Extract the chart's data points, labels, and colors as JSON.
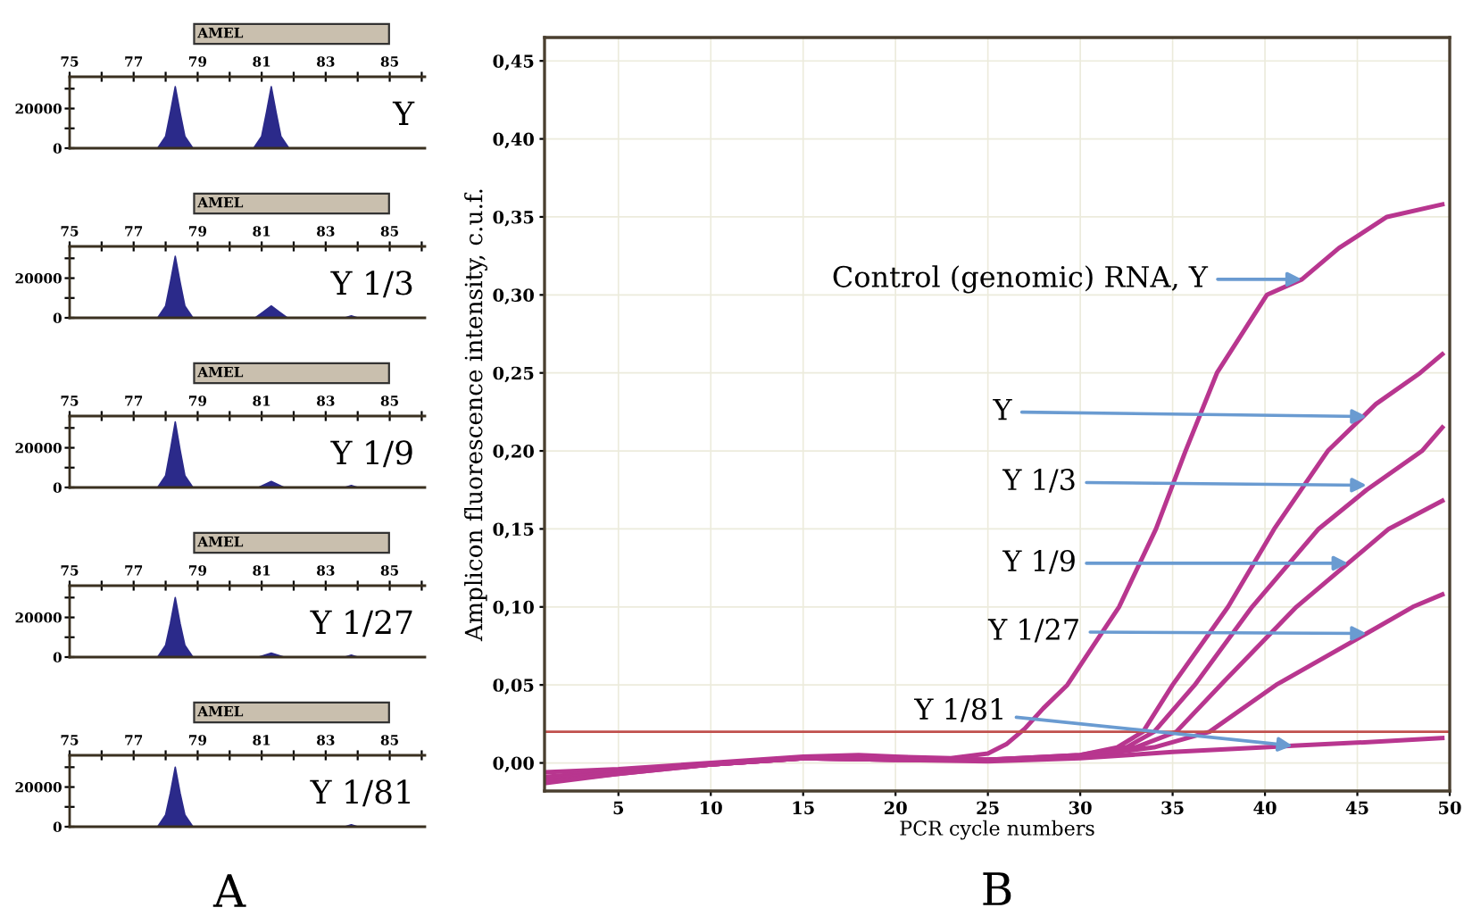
{
  "chart_data": [
    {
      "type": "area",
      "x": [
        75,
        77.75,
        78.0,
        78.15,
        78.3,
        78.45,
        78.6,
        78.85,
        80.75,
        81.0,
        81.15,
        81.3,
        81.45,
        81.6,
        81.85,
        86.1
      ],
      "values": [
        0,
        0,
        6000,
        18000,
        31000,
        18000,
        6000,
        0,
        0,
        6000,
        18000,
        31000,
        18000,
        6000,
        0,
        0
      ],
      "color": "#2b2a8a",
      "xlim": [
        75,
        86.1
      ],
      "xticks": [
        75,
        {
          "value": 76,
          "label": null
        },
        77,
        {
          "value": 78,
          "label": null
        },
        79,
        {
          "value": 80,
          "label": null
        },
        81,
        {
          "value": 82,
          "label": null
        },
        83,
        {
          "value": 84,
          "label": null
        },
        85,
        {
          "value": 86,
          "label": null
        }
      ],
      "ylim": [
        0,
        36000
      ],
      "yticks": [
        0,
        {
          "value": 10000,
          "label": null
        },
        20000,
        {
          "value": 30000,
          "label": null
        }
      ],
      "annotations": [
        "AMEL",
        "Y"
      ]
    },
    {
      "type": "area",
      "x": [
        75,
        77.75,
        78.0,
        78.15,
        78.3,
        78.45,
        78.6,
        78.85,
        80.8,
        81.05,
        81.3,
        81.55,
        81.8,
        83.6,
        83.8,
        84.0,
        86.1
      ],
      "values": [
        0,
        0,
        6000,
        18000,
        31000,
        18000,
        6000,
        0,
        0,
        3000,
        6000,
        3000,
        0,
        0,
        1000,
        0,
        0
      ],
      "color": "#2b2a8a",
      "xlim": [
        75,
        86.1
      ],
      "xticks": [
        75,
        {
          "value": 76,
          "label": null
        },
        77,
        {
          "value": 78,
          "label": null
        },
        79,
        {
          "value": 80,
          "label": null
        },
        81,
        {
          "value": 82,
          "label": null
        },
        83,
        {
          "value": 84,
          "label": null
        },
        85,
        {
          "value": 86,
          "label": null
        }
      ],
      "ylim": [
        0,
        36000
      ],
      "yticks": [
        0,
        {
          "value": 10000,
          "label": null
        },
        20000,
        {
          "value": 30000,
          "label": null
        }
      ],
      "annotations": [
        "AMEL",
        "Y 1/3"
      ]
    },
    {
      "type": "area",
      "x": [
        75,
        77.75,
        78.0,
        78.15,
        78.3,
        78.45,
        78.6,
        78.85,
        80.9,
        81.3,
        81.7,
        83.6,
        83.8,
        84.0,
        86.1
      ],
      "values": [
        0,
        0,
        6000,
        19000,
        33000,
        19000,
        6000,
        0,
        0,
        3000,
        0,
        0,
        1000,
        0,
        0
      ],
      "color": "#2b2a8a",
      "xlim": [
        75,
        86.1
      ],
      "xticks": [
        75,
        {
          "value": 76,
          "label": null
        },
        77,
        {
          "value": 78,
          "label": null
        },
        79,
        {
          "value": 80,
          "label": null
        },
        81,
        {
          "value": 82,
          "label": null
        },
        83,
        {
          "value": 84,
          "label": null
        },
        85,
        {
          "value": 86,
          "label": null
        }
      ],
      "ylim": [
        0,
        36000
      ],
      "yticks": [
        0,
        {
          "value": 10000,
          "label": null
        },
        20000,
        {
          "value": 30000,
          "label": null
        }
      ],
      "annotations": [
        "AMEL",
        "Y 1/9"
      ]
    },
    {
      "type": "area",
      "x": [
        75,
        77.75,
        78.0,
        78.15,
        78.3,
        78.45,
        78.6,
        78.85,
        80.9,
        81.3,
        81.7,
        83.6,
        83.8,
        84.0,
        86.1
      ],
      "values": [
        0,
        0,
        6000,
        17000,
        30000,
        17000,
        6000,
        0,
        0,
        2000,
        0,
        0,
        1000,
        0,
        0
      ],
      "color": "#2b2a8a",
      "xlim": [
        75,
        86.1
      ],
      "xticks": [
        75,
        {
          "value": 76,
          "label": null
        },
        77,
        {
          "value": 78,
          "label": null
        },
        79,
        {
          "value": 80,
          "label": null
        },
        81,
        {
          "value": 82,
          "label": null
        },
        83,
        {
          "value": 84,
          "label": null
        },
        85,
        {
          "value": 86,
          "label": null
        }
      ],
      "ylim": [
        0,
        36000
      ],
      "yticks": [
        0,
        {
          "value": 10000,
          "label": null
        },
        20000,
        {
          "value": 30000,
          "label": null
        }
      ],
      "annotations": [
        "AMEL",
        "Y 1/27"
      ]
    },
    {
      "type": "area",
      "x": [
        75,
        77.75,
        78.0,
        78.15,
        78.3,
        78.45,
        78.6,
        78.85,
        83.6,
        83.8,
        84.0,
        86.1
      ],
      "values": [
        0,
        0,
        6000,
        17000,
        30000,
        17000,
        6000,
        0,
        0,
        1000,
        0,
        0
      ],
      "color": "#2b2a8a",
      "xlim": [
        75,
        86.1
      ],
      "xticks": [
        75,
        {
          "value": 76,
          "label": null
        },
        77,
        {
          "value": 78,
          "label": null
        },
        79,
        {
          "value": 80,
          "label": null
        },
        81,
        {
          "value": 82,
          "label": null
        },
        83,
        {
          "value": 84,
          "label": null
        },
        85,
        {
          "value": 86,
          "label": null
        }
      ],
      "ylim": [
        0,
        36000
      ],
      "yticks": [
        0,
        {
          "value": 10000,
          "label": null
        },
        20000,
        {
          "value": 30000,
          "label": null
        }
      ],
      "annotations": [
        "AMEL",
        "Y 1/81",
        "A"
      ]
    },
    {
      "type": "line",
      "xlabel": "PCR cycle numbers",
      "ylabel": "Amplicon fluorescence intensity, c.u.f.",
      "xlim": [
        1,
        50
      ],
      "xticks": [
        5,
        10,
        15,
        20,
        25,
        30,
        35,
        40,
        45,
        50
      ],
      "ylim": [
        -0.018,
        0.465
      ],
      "yticks": [
        {
          "value": 0,
          "label": "0,00"
        },
        {
          "value": 0.05,
          "label": "0,05"
        },
        {
          "value": 0.1,
          "label": "0,10"
        },
        {
          "value": 0.15,
          "label": "0,15"
        },
        {
          "value": 0.2,
          "label": "0,20"
        },
        {
          "value": 0.25,
          "label": "0,25"
        },
        {
          "value": 0.3,
          "label": "0,30"
        },
        {
          "value": 0.35,
          "label": "0,35"
        },
        {
          "value": 0.4,
          "label": "0,40"
        },
        {
          "value": 0.45,
          "label": "0,45"
        }
      ],
      "grid": true,
      "ref_lines": [
        {
          "axis": "y",
          "value": 0.02,
          "color": "#c0504d"
        }
      ],
      "series": [
        {
          "color": "#b8368f",
          "x": [
            1,
            5,
            10,
            15,
            18,
            20,
            23,
            25,
            26,
            27,
            28,
            29.3,
            30.7,
            32.1,
            34.1,
            35.7,
            37.4,
            40.1,
            42,
            44,
            46.6,
            49.6
          ],
          "values": [
            -0.006,
            -0.004,
            0.0,
            0.004,
            0.005,
            0.004,
            0.003,
            0.006,
            0.012,
            0.022,
            0.035,
            0.05,
            0.075,
            0.1,
            0.15,
            0.2,
            0.25,
            0.3,
            0.31,
            0.33,
            0.35,
            0.358
          ]
        },
        {
          "color": "#b8368f",
          "x": [
            1,
            5,
            10,
            15,
            20,
            25,
            30,
            32,
            33.4,
            35,
            38,
            40.5,
            43.4,
            46,
            48.4,
            49.6
          ],
          "values": [
            -0.009,
            -0.005,
            -0.001,
            0.003,
            0.003,
            0.002,
            0.005,
            0.01,
            0.02,
            0.05,
            0.1,
            0.15,
            0.2,
            0.23,
            0.25,
            0.262
          ]
        },
        {
          "color": "#b8368f",
          "x": [
            1,
            5,
            10,
            15,
            20,
            25,
            30,
            32.5,
            34,
            36.2,
            39.3,
            42.9,
            45.5,
            48.5,
            49.6
          ],
          "values": [
            -0.01,
            -0.006,
            -0.001,
            0.003,
            0.002,
            0.002,
            0.005,
            0.01,
            0.02,
            0.05,
            0.1,
            0.15,
            0.175,
            0.2,
            0.215
          ]
        },
        {
          "color": "#b8368f",
          "x": [
            1,
            5,
            10,
            15,
            20,
            25,
            30,
            33,
            35.2,
            37.6,
            41.7,
            44.5,
            46.7,
            49.6
          ],
          "values": [
            -0.011,
            -0.006,
            -0.001,
            0.003,
            0.002,
            0.002,
            0.004,
            0.01,
            0.02,
            0.05,
            0.1,
            0.128,
            0.15,
            0.168
          ]
        },
        {
          "color": "#b8368f",
          "x": [
            1,
            5,
            10,
            15,
            20,
            25,
            30,
            34,
            37,
            40.6,
            45.5,
            48,
            49.6
          ],
          "values": [
            -0.012,
            -0.007,
            -0.001,
            0.003,
            0.002,
            0.002,
            0.004,
            0.01,
            0.02,
            0.05,
            0.083,
            0.1,
            0.108
          ]
        },
        {
          "color": "#b8368f",
          "x": [
            1,
            5,
            10,
            15,
            20,
            25,
            30,
            35,
            40,
            41.5,
            45,
            49.6
          ],
          "values": [
            -0.013,
            -0.007,
            -0.001,
            0.003,
            0.002,
            0.001,
            0.003,
            0.007,
            0.01,
            0.011,
            0.013,
            0.016
          ]
        }
      ],
      "annotations": [
        {
          "text": "Control (genomic) RNA, Y",
          "x": 42,
          "y": 0.31
        },
        {
          "text": "Y",
          "x": 45.5,
          "y": 0.222
        },
        {
          "text": "Y 1/3",
          "x": 45.5,
          "y": 0.178
        },
        {
          "text": "Y 1/9",
          "x": 44.5,
          "y": 0.128
        },
        {
          "text": "Y 1/27",
          "x": 45.5,
          "y": 0.083
        },
        {
          "text": "Y 1/81",
          "x": 41.5,
          "y": 0.011
        },
        "B"
      ]
    }
  ]
}
